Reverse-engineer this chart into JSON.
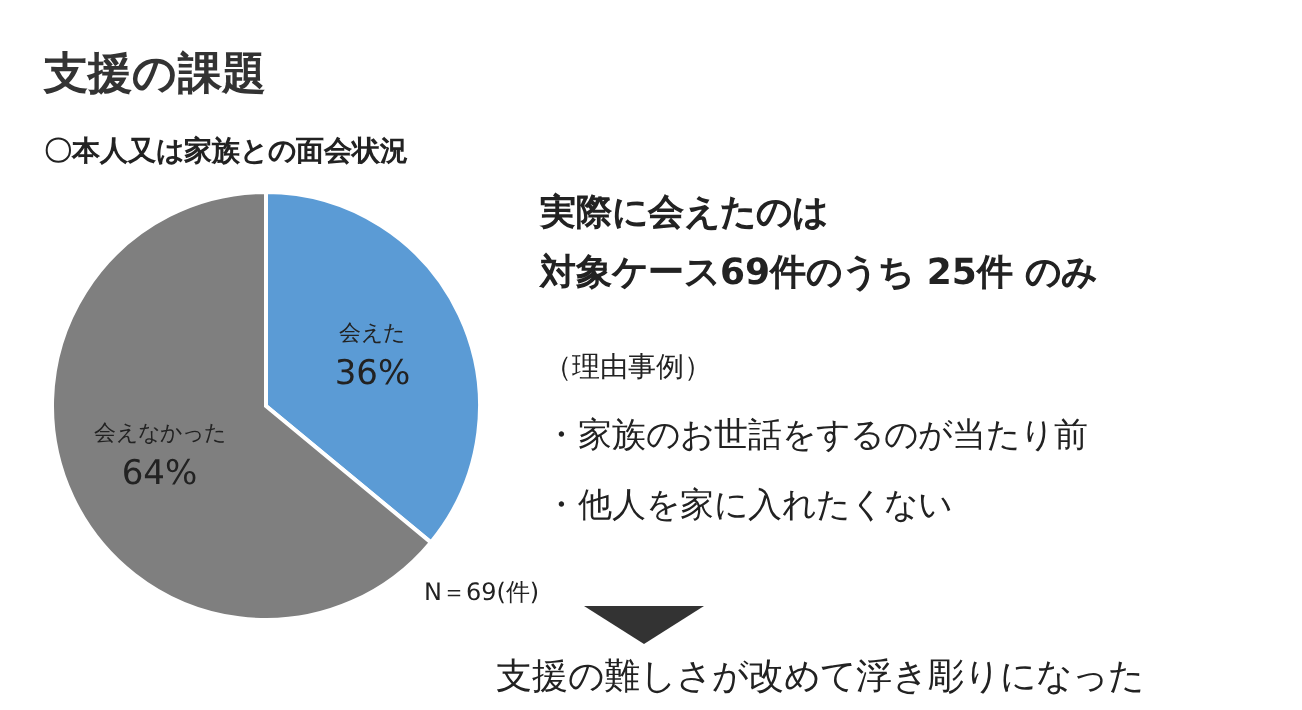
{
  "chart_data": {
    "type": "pie",
    "title": "支援の課題",
    "subtitle": "〇本人又は家族との面会状況",
    "categories": [
      "会えた",
      "会えなかった"
    ],
    "values": [
      36,
      64
    ],
    "value_labels": [
      "36%",
      "64%"
    ],
    "colors": [
      "#5b9bd5",
      "#7f7f7f"
    ],
    "annotations": [
      "実際に会えたのは",
      "対象ケース69件のうち 25件 のみ",
      "（理由事例）",
      "・家族のお世話をするのが当たり前",
      "・他人を家に入れたくない",
      "N＝69(件)",
      "支援の難しさが改めて浮き彫りになった"
    ]
  }
}
